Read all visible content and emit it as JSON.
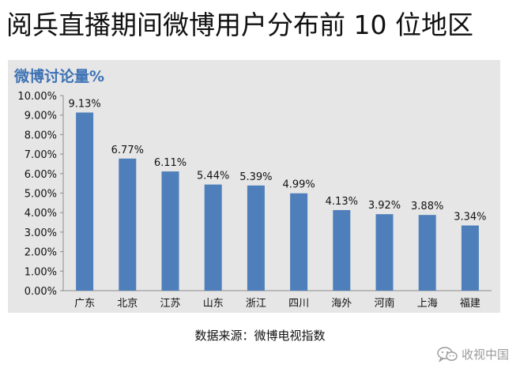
{
  "title": "阅兵直播期间微博用户分布前 10 位地区",
  "source": "数据来源：微博电视指数",
  "watermark": {
    "icon": "wechat-icon",
    "text": "收视中国"
  },
  "colors": {
    "bar": "#4f7fba",
    "panel": "#e6e6e6",
    "chart_title": "#3d72b4",
    "text": "#111111"
  },
  "chart_data": {
    "type": "bar",
    "title": "微博讨论量%",
    "xlabel": "",
    "ylabel": "",
    "categories": [
      "广东",
      "北京",
      "江苏",
      "山东",
      "浙江",
      "四川",
      "海外",
      "河南",
      "上海",
      "福建"
    ],
    "values": [
      9.13,
      6.77,
      6.11,
      5.44,
      5.39,
      4.99,
      4.13,
      3.92,
      3.88,
      3.34
    ],
    "data_labels": [
      "9.13%",
      "6.77%",
      "6.11%",
      "5.44%",
      "5.39%",
      "4.99%",
      "4.13%",
      "3.92%",
      "3.88%",
      "3.34%"
    ],
    "ylim": [
      0,
      10
    ],
    "yticks": [
      0,
      1,
      2,
      3,
      4,
      5,
      6,
      7,
      8,
      9,
      10
    ],
    "ytick_labels": [
      "0.00%",
      "1.00%",
      "2.00%",
      "3.00%",
      "4.00%",
      "5.00%",
      "6.00%",
      "7.00%",
      "8.00%",
      "9.00%",
      "10.00%"
    ],
    "grid": false,
    "legend": "none"
  }
}
